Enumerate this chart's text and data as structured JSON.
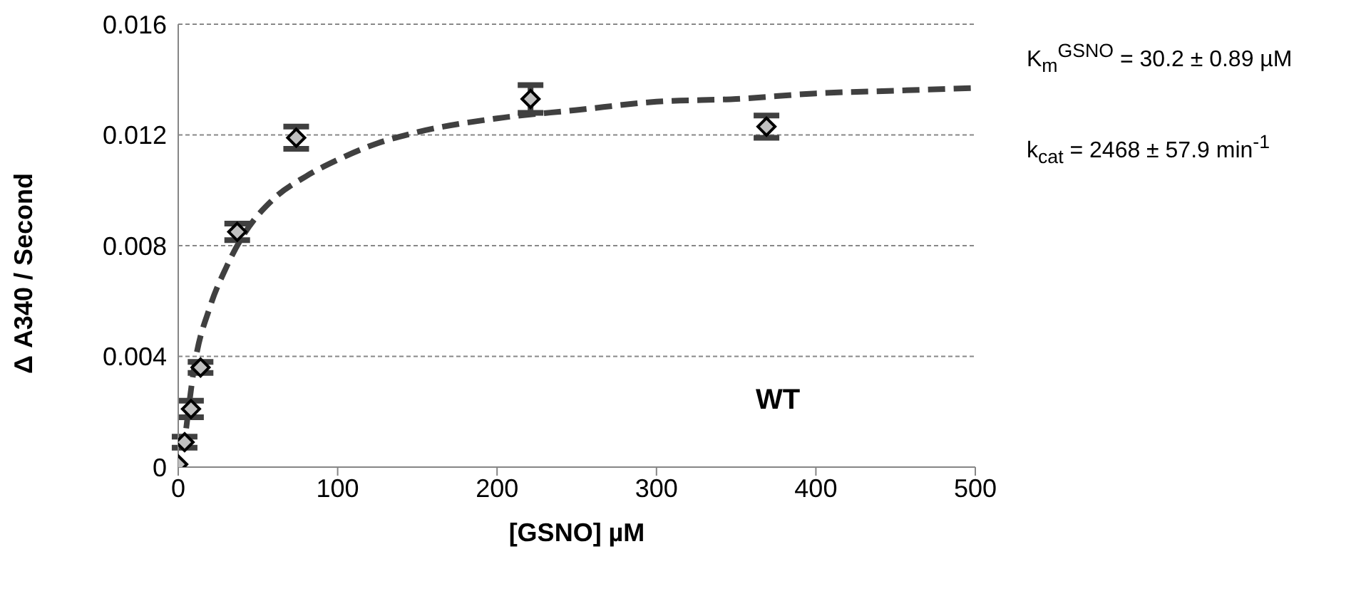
{
  "chart_data": {
    "type": "scatter",
    "xlabel": "[GSNO] µM",
    "ylabel": "Δ A340 / Second",
    "xlim": [
      0,
      500
    ],
    "xticks": [
      0,
      100,
      200,
      300,
      400,
      500
    ],
    "ylim": [
      0,
      0.016
    ],
    "yticks": [
      0,
      0.004,
      0.008,
      0.012,
      0.016
    ],
    "grid": "y",
    "marker": "diamond",
    "series": [
      {
        "color": "#c0c0c0",
        "x": [
          0,
          4,
          8,
          14,
          37,
          74,
          221,
          369
        ],
        "values": [
          0.0001,
          0.0009,
          0.0021,
          0.0036,
          0.0085,
          0.0119,
          0.0133,
          0.0123
        ],
        "errors": [
          null,
          0.0002,
          0.0003,
          0.0002,
          0.0003,
          0.0004,
          0.0005,
          0.0004
        ]
      },
      {
        "type": "line",
        "color": "#404040",
        "line_style": "dashed",
        "marker": "none",
        "x": [
          5,
          10,
          20,
          30,
          40,
          60,
          80,
          100,
          125,
          150,
          200,
          250,
          300,
          350,
          400,
          450,
          500
        ],
        "values": [
          0.0014,
          0.0036,
          0.0058,
          0.0072,
          0.0083,
          0.0097,
          0.0105,
          0.0111,
          0.0117,
          0.0121,
          0.0126,
          0.0129,
          0.0132,
          0.0133,
          0.0135,
          0.0136,
          0.0137
        ]
      }
    ],
    "annotations": [
      "K$_{m}$$^{GSNO}$ = 30.2 ± 0.89 µM",
      "k$_{cat}$ = 2468 ± 57.9 min$^{-1}$",
      "WT"
    ]
  }
}
